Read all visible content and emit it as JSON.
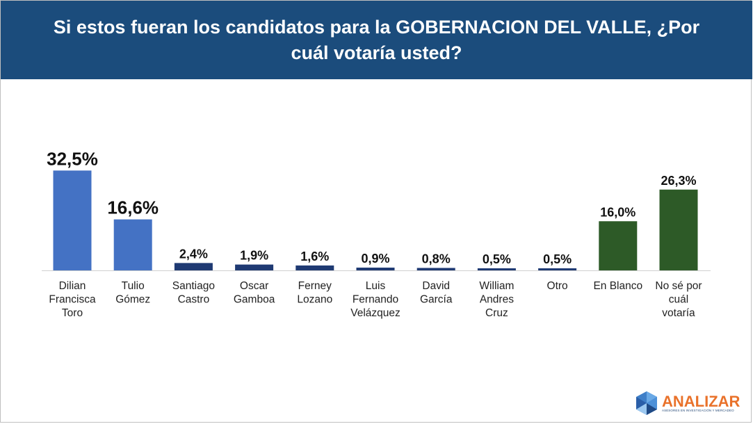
{
  "header": {
    "title": "Si estos fueran los candidatos para la GOBERNACION DEL VALLE, ¿Por cuál votaría usted?"
  },
  "brand": {
    "name": "ANALIZAR",
    "tagline": "ASESORES EN INVESTIGACIÓN Y MERCADEO",
    "accent": "#e9722b"
  },
  "colors": {
    "header_bg": "#1b4c7c",
    "top_two": "#4472c4",
    "others": "#1f3a73",
    "blank_unknown": "#2d5a27"
  },
  "chart_data": {
    "type": "bar",
    "title": "Si estos fueran los candidatos para la GOBERNACION DEL VALLE, ¿Por cuál votaría usted?",
    "xlabel": "",
    "ylabel": "",
    "ylim": [
      0,
      35
    ],
    "grid": false,
    "categories": [
      "Dilian Francisca Toro",
      "Tulio Gómez",
      "Santiago Castro",
      "Oscar Gamboa",
      "Ferney Lozano",
      "Luis Fernando Velázquez",
      "David García",
      "William Andres Cruz",
      "Otro",
      "En Blanco",
      "No sé por cuál votaría"
    ],
    "category_lines": [
      [
        "Dilian",
        "Francisca",
        "Toro"
      ],
      [
        "Tulio",
        "Gómez"
      ],
      [
        "Santiago",
        "Castro"
      ],
      [
        "Oscar",
        "Gamboa"
      ],
      [
        "Ferney",
        "Lozano"
      ],
      [
        "Luis",
        "Fernando",
        "Velázquez"
      ],
      [
        "David",
        "García"
      ],
      [
        "William",
        "Andres",
        "Cruz"
      ],
      [
        "Otro"
      ],
      [
        "En Blanco"
      ],
      [
        "No sé por",
        "cuál",
        "votaría"
      ]
    ],
    "values": [
      32.5,
      16.6,
      2.4,
      1.9,
      1.6,
      0.9,
      0.8,
      0.5,
      0.5,
      16.0,
      26.3
    ],
    "data_labels": [
      "32,5%",
      "16,6%",
      "2,4%",
      "1,9%",
      "1,6%",
      "0,9%",
      "0,8%",
      "0,5%",
      "0,5%",
      "16,0%",
      "26,3%"
    ],
    "bar_colors": [
      "#4472c4",
      "#4472c4",
      "#1f3a73",
      "#1f3a73",
      "#1f3a73",
      "#1f3a73",
      "#1f3a73",
      "#1f3a73",
      "#1f3a73",
      "#2d5a27",
      "#2d5a27"
    ]
  }
}
